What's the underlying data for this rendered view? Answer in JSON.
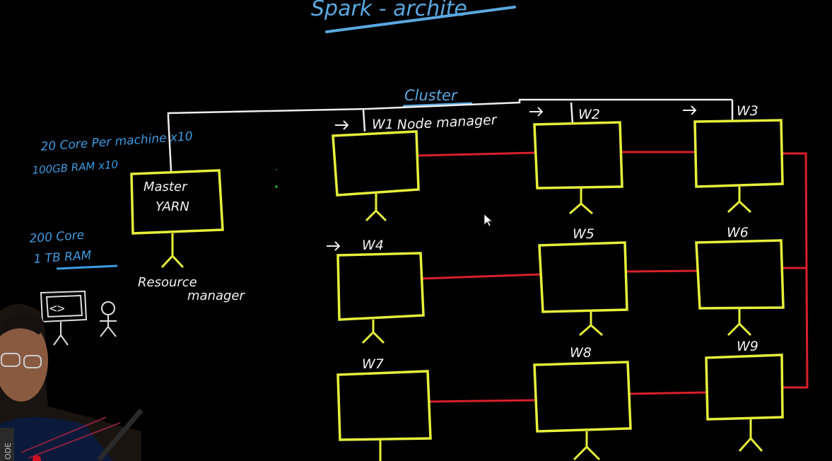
{
  "title": "Spark - archite",
  "cluster_label": "Cluster",
  "notes": {
    "per_machine_cores": "20 Core Per machine x10",
    "per_machine_ram": "100GB RAM x10",
    "total_cores": "200 Core",
    "total_ram": "1 TB RAM"
  },
  "master": {
    "line1": "Master",
    "line2": "YARN",
    "role_line1": "Resource",
    "role_line2": "manager"
  },
  "node_manager_label": "Node manager",
  "workers": [
    "W1",
    "W2",
    "W3",
    "W4",
    "W5",
    "W6",
    "W7",
    "W8",
    "W9"
  ],
  "client_icon": "code-screen-icon",
  "watermark": "ODE",
  "colors": {
    "title": "#5aa8e0",
    "notes": "#3d9be0",
    "box": "#e6f03a",
    "link": "#d8202a",
    "text": "#f2f2f2"
  }
}
